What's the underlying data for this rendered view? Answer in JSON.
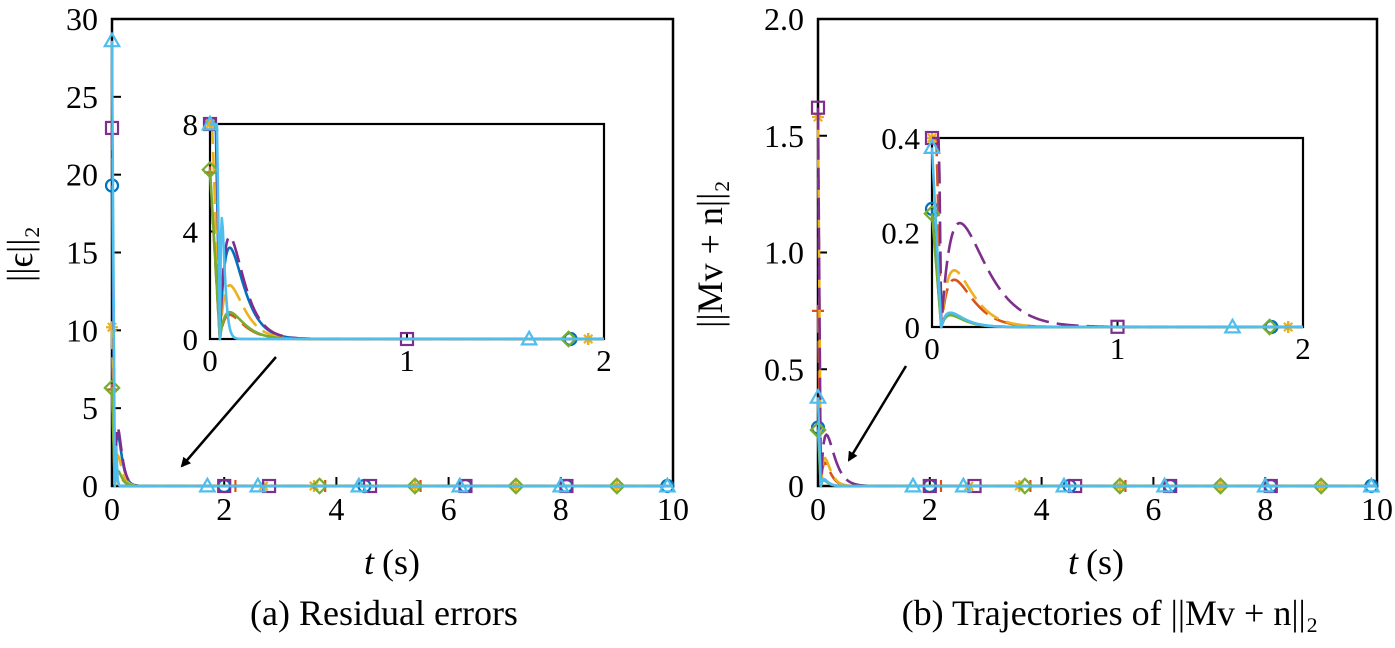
{
  "colors": {
    "blue": "#0072BD",
    "orange": "#D95319",
    "yellow": "#EDB120",
    "purple": "#7E2F8E",
    "green": "#77AC30",
    "cyan": "#4DBEEE"
  },
  "chart_data": [
    {
      "type": "line",
      "caption": "(a) Residual errors",
      "xlabel_italic": "t",
      "xlabel_unit": "(s)",
      "ylabel": "||ϵ||₂",
      "xlim": [
        0,
        10
      ],
      "ylim": [
        0,
        30
      ],
      "xticks": [
        0,
        2,
        4,
        6,
        8,
        10
      ],
      "yticks": [
        0,
        5,
        10,
        15,
        20,
        25,
        30
      ],
      "grid": false,
      "series": [
        {
          "color": "blue",
          "marker": "circle",
          "initial": 19.3,
          "peak_t": 0.1,
          "peak_y": 3.4,
          "decay": 7,
          "dash": false
        },
        {
          "color": "orange",
          "marker": "plus",
          "initial": 6.2,
          "peak_t": 0.1,
          "peak_y": 0.9,
          "decay": 7,
          "dash": true
        },
        {
          "color": "yellow",
          "marker": "star",
          "initial": 10.2,
          "peak_t": 0.1,
          "peak_y": 2.0,
          "decay": 7,
          "dash": true
        },
        {
          "color": "purple",
          "marker": "square",
          "initial": 23.0,
          "peak_t": 0.1,
          "peak_y": 3.8,
          "decay": 7,
          "dash": true
        },
        {
          "color": "green",
          "marker": "diamond",
          "initial": 6.3,
          "peak_t": 0.1,
          "peak_y": 1.0,
          "decay": 7,
          "dash": false
        },
        {
          "color": "cyan",
          "marker": "triangle",
          "initial": 28.6,
          "peak_t": 0.06,
          "peak_y": 4.5,
          "decay": 6,
          "dash": false
        }
      ],
      "inset": {
        "xlim": [
          0,
          2
        ],
        "ylim": [
          0,
          8
        ],
        "xticks": [
          0,
          1,
          2
        ],
        "yticks": [
          0,
          4,
          8
        ]
      }
    },
    {
      "type": "line",
      "caption": "(b) Trajectories of ||Mv + n||₂",
      "xlabel_italic": "t",
      "xlabel_unit": "(s)",
      "ylabel": "||Mv + n||₂",
      "xlim": [
        0,
        10
      ],
      "ylim": [
        0,
        2.0
      ],
      "xticks": [
        0,
        2,
        4,
        6,
        8,
        10
      ],
      "yticks": [
        0,
        0.5,
        1.0,
        1.5,
        2.0
      ],
      "ytick_labels": [
        "0",
        "0.5",
        "1.0",
        "1.5",
        "2.0"
      ],
      "grid": false,
      "series": [
        {
          "color": "blue",
          "marker": "circle",
          "initial": 0.25,
          "peak_t": 0.1,
          "peak_y": 0.03,
          "decay": 10,
          "dash": false
        },
        {
          "color": "orange",
          "marker": "plus",
          "initial": 0.75,
          "peak_t": 0.12,
          "peak_y": 0.1,
          "decay": 7,
          "dash": true
        },
        {
          "color": "yellow",
          "marker": "star",
          "initial": 1.58,
          "peak_t": 0.12,
          "peak_y": 0.12,
          "decay": 6,
          "dash": true
        },
        {
          "color": "purple",
          "marker": "square",
          "initial": 1.62,
          "peak_t": 0.15,
          "peak_y": 0.22,
          "decay": 5.5,
          "dash": true
        },
        {
          "color": "green",
          "marker": "diamond",
          "initial": 0.24,
          "peak_t": 0.1,
          "peak_y": 0.025,
          "decay": 10,
          "dash": false
        },
        {
          "color": "cyan",
          "marker": "triangle",
          "initial": 0.38,
          "peak_t": 0.1,
          "peak_y": 0.03,
          "decay": 10,
          "dash": false
        }
      ],
      "inset": {
        "xlim": [
          0,
          2
        ],
        "ylim": [
          0,
          0.4
        ],
        "xticks": [
          0,
          1,
          2
        ],
        "yticks": [
          0,
          0.2,
          0.4
        ]
      }
    }
  ]
}
